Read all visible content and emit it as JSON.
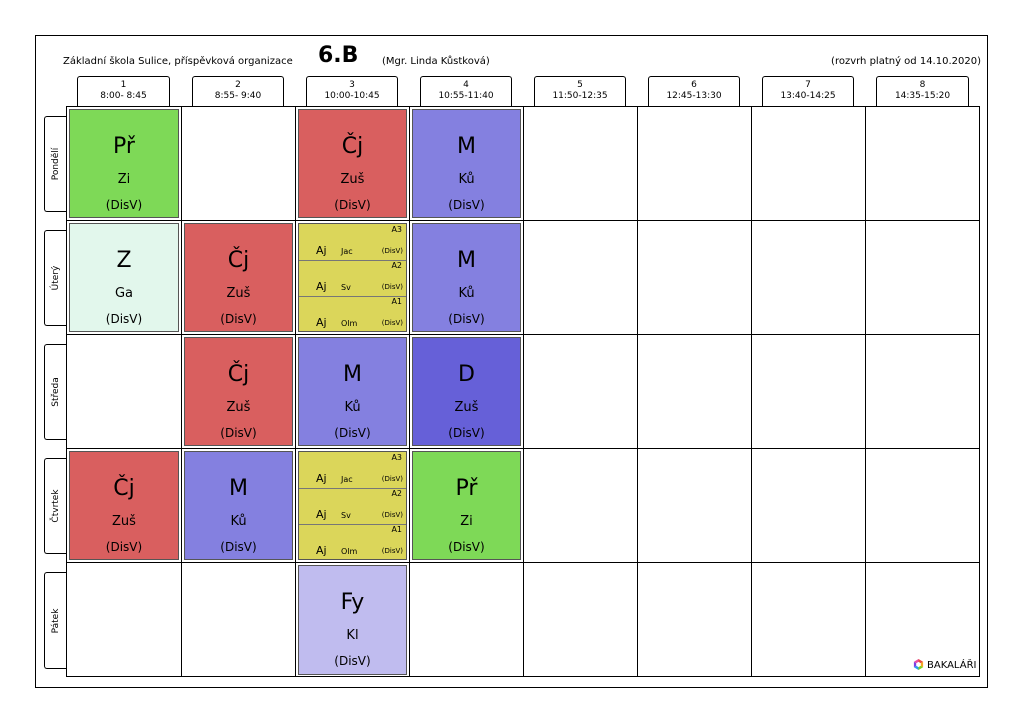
{
  "header": {
    "school": "Základní škola Sulice, příspěvková organizace",
    "class_name": "6.B",
    "teacher": "(Mgr. Linda Kůstková)",
    "validity": "(rozvrh platný od 14.10.2020)"
  },
  "periods": [
    {
      "num": "1",
      "time": "8:00- 8:45"
    },
    {
      "num": "2",
      "time": "8:55- 9:40"
    },
    {
      "num": "3",
      "time": "10:00-10:45"
    },
    {
      "num": "4",
      "time": "10:55-11:40"
    },
    {
      "num": "5",
      "time": "11:50-12:35"
    },
    {
      "num": "6",
      "time": "12:45-13:30"
    },
    {
      "num": "7",
      "time": "13:40-14:25"
    },
    {
      "num": "8",
      "time": "14:35-15:20"
    }
  ],
  "days": [
    "Pondělí",
    "Úterý",
    "Středa",
    "Čtvrtek",
    "Pátek"
  ],
  "colors": {
    "green": "#7ed957",
    "light_green": "#e2f7ec",
    "red": "#d95f5f",
    "blue": "#8480e0",
    "dark_blue": "#6660d8",
    "yellow": "#dbd65a",
    "lavender": "#c0bcef"
  },
  "lessons": [
    {
      "day": 0,
      "period": 0,
      "subject": "Př",
      "teacher": "Zi",
      "room": "(DisV)",
      "color": "#7ed957"
    },
    {
      "day": 0,
      "period": 2,
      "subject": "Čj",
      "teacher": "Zuš",
      "room": "(DisV)",
      "color": "#d95f5f"
    },
    {
      "day": 0,
      "period": 3,
      "subject": "M",
      "teacher": "Ků",
      "room": "(DisV)",
      "color": "#8480e0"
    },
    {
      "day": 1,
      "period": 0,
      "subject": "Z",
      "teacher": "Ga",
      "room": "(DisV)",
      "color": "#e2f7ec"
    },
    {
      "day": 1,
      "period": 1,
      "subject": "Čj",
      "teacher": "Zuš",
      "room": "(DisV)",
      "color": "#d95f5f"
    },
    {
      "day": 1,
      "period": 3,
      "subject": "M",
      "teacher": "Ků",
      "room": "(DisV)",
      "color": "#8480e0"
    },
    {
      "day": 2,
      "period": 1,
      "subject": "Čj",
      "teacher": "Zuš",
      "room": "(DisV)",
      "color": "#d95f5f"
    },
    {
      "day": 2,
      "period": 2,
      "subject": "M",
      "teacher": "Ků",
      "room": "(DisV)",
      "color": "#8480e0"
    },
    {
      "day": 2,
      "period": 3,
      "subject": "D",
      "teacher": "Zuš",
      "room": "(DisV)",
      "color": "#6660d8"
    },
    {
      "day": 3,
      "period": 0,
      "subject": "Čj",
      "teacher": "Zuš",
      "room": "(DisV)",
      "color": "#d95f5f"
    },
    {
      "day": 3,
      "period": 1,
      "subject": "M",
      "teacher": "Ků",
      "room": "(DisV)",
      "color": "#8480e0"
    },
    {
      "day": 3,
      "period": 3,
      "subject": "Př",
      "teacher": "Zi",
      "room": "(DisV)",
      "color": "#7ed957"
    },
    {
      "day": 4,
      "period": 2,
      "subject": "Fy",
      "teacher": "Kl",
      "room": "(DisV)",
      "color": "#c0bcef"
    }
  ],
  "group_lessons": [
    {
      "day": 1,
      "period": 2,
      "color": "#dbd65a",
      "groups": [
        {
          "group": "A3",
          "subject": "Aj",
          "teacher": "Jac",
          "room": "(DisV)"
        },
        {
          "group": "A2",
          "subject": "Aj",
          "teacher": "Sv",
          "room": "(DisV)"
        },
        {
          "group": "A1",
          "subject": "Aj",
          "teacher": "Olm",
          "room": "(DisV)"
        }
      ]
    },
    {
      "day": 3,
      "period": 2,
      "color": "#dbd65a",
      "groups": [
        {
          "group": "A3",
          "subject": "Aj",
          "teacher": "Jac",
          "room": "(DisV)"
        },
        {
          "group": "A2",
          "subject": "Aj",
          "teacher": "Sv",
          "room": "(DisV)"
        },
        {
          "group": "A1",
          "subject": "Aj",
          "teacher": "Olm",
          "room": "(DisV)"
        }
      ]
    }
  ],
  "logo": {
    "text": "BAKALÁŘI",
    "icon": "bakalari-logo-icon"
  }
}
